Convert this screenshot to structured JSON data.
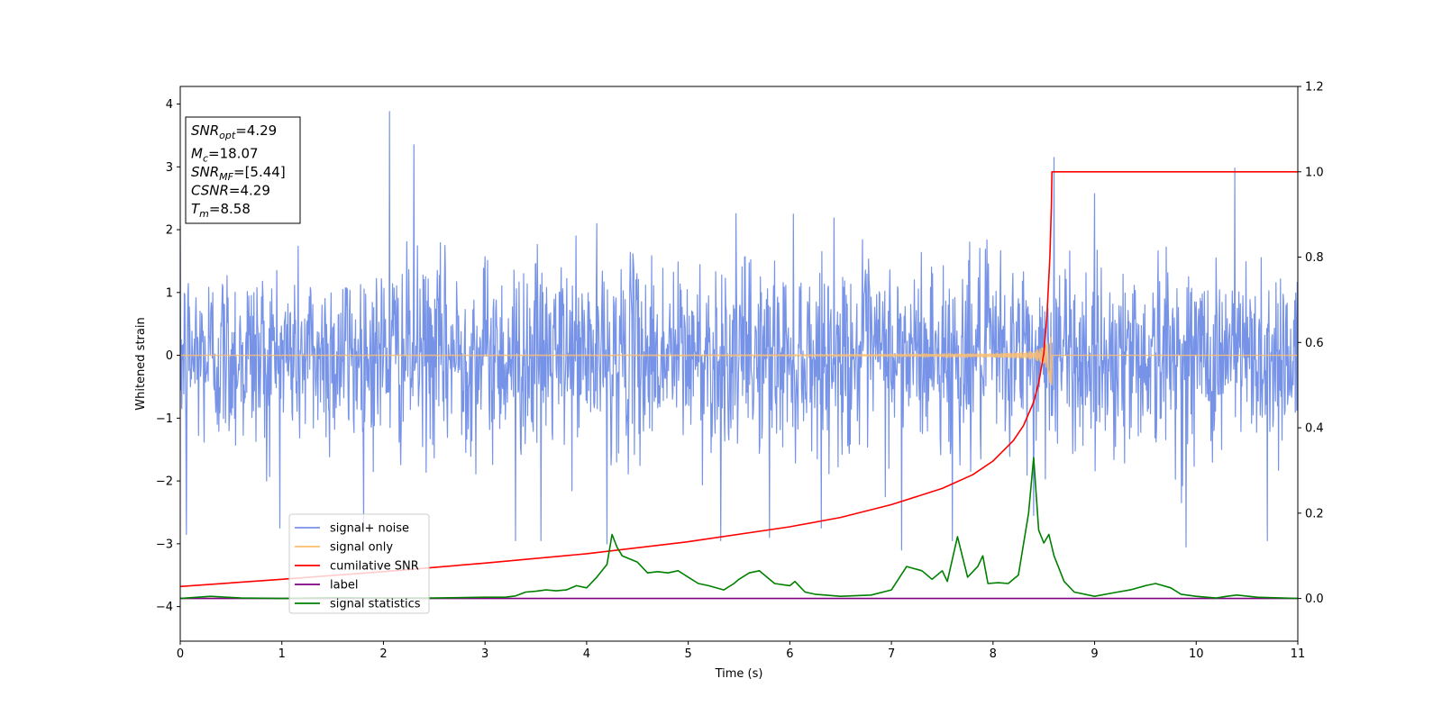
{
  "chart_data": {
    "type": "line",
    "xlabel": "Time (s)",
    "ylabel": "Whitened strain",
    "xlim": [
      0,
      11
    ],
    "ylim_left": [
      -4.55,
      4.28
    ],
    "ylim_right": [
      -0.1,
      1.2
    ],
    "x_ticks": [
      "0",
      "1",
      "2",
      "3",
      "4",
      "5",
      "6",
      "7",
      "8",
      "9",
      "10",
      "11"
    ],
    "y_ticks_left": [
      {
        "value": 4,
        "label": "4"
      },
      {
        "value": 3,
        "label": "3"
      },
      {
        "value": 2,
        "label": "2"
      },
      {
        "value": 1,
        "label": "1"
      },
      {
        "value": 0,
        "label": "0"
      },
      {
        "value": -1,
        "label": "−1"
      },
      {
        "value": -2,
        "label": "−2"
      },
      {
        "value": -3,
        "label": "−3"
      },
      {
        "value": -4,
        "label": "−4"
      }
    ],
    "y_ticks_right": [
      {
        "value": 1.2,
        "label": "1.2"
      },
      {
        "value": 1.0,
        "label": "1.0"
      },
      {
        "value": 0.8,
        "label": "0.8"
      },
      {
        "value": 0.6,
        "label": "0.6"
      },
      {
        "value": 0.4,
        "label": "0.4"
      },
      {
        "value": 0.2,
        "label": "0.2"
      },
      {
        "value": 0.0,
        "label": "0.0"
      }
    ],
    "grid": false,
    "legend_position": "lower-left",
    "annotation": {
      "lines": [
        {
          "main": "SNR",
          "sub": "opt",
          "rest": "=4.29"
        },
        {
          "main": "M",
          "sub": "c",
          "rest": "=18.07"
        },
        {
          "main": "SNR",
          "sub": "MF",
          "rest": "=[5.44]"
        },
        {
          "main": "CSNR",
          "sub": "",
          "rest": "=4.29"
        },
        {
          "main": "T",
          "sub": "m",
          "rest": "=8.58"
        }
      ]
    },
    "series": [
      {
        "name": "signal+ noise",
        "color": "#7793e8",
        "axis": "left",
        "kind": "noise",
        "sigma": 0.75,
        "spikes": [
          {
            "x": 2.06,
            "y": 3.88
          },
          {
            "x": 2.3,
            "y": 3.35
          },
          {
            "x": 8.6,
            "y": 3.15
          },
          {
            "x": 10.38,
            "y": 2.98
          },
          {
            "x": 4.2,
            "y": -3.0
          },
          {
            "x": 0.06,
            "y": -2.85
          },
          {
            "x": 3.3,
            "y": -2.95
          },
          {
            "x": 3.55,
            "y": -2.95
          },
          {
            "x": 5.32,
            "y": -2.95
          },
          {
            "x": 5.8,
            "y": -2.9
          },
          {
            "x": 7.1,
            "y": -3.1
          },
          {
            "x": 7.6,
            "y": -2.95
          },
          {
            "x": 9.9,
            "y": -3.05
          },
          {
            "x": 10.7,
            "y": -2.95
          },
          {
            "x": 8.4,
            "y": -2.55
          },
          {
            "x": 0.85,
            "y": -2.0
          }
        ]
      },
      {
        "name": "signal only",
        "color": "#fdbf6f",
        "axis": "left",
        "kind": "chirp",
        "merger_time": 8.58,
        "peak_amplitude": 0.72
      },
      {
        "name": "cumilative SNR",
        "color": "#ff0000",
        "axis": "right",
        "points": [
          [
            0,
            0.028
          ],
          [
            1,
            0.045
          ],
          [
            2,
            0.063
          ],
          [
            3,
            0.083
          ],
          [
            4,
            0.105
          ],
          [
            5,
            0.133
          ],
          [
            6,
            0.168
          ],
          [
            6.5,
            0.19
          ],
          [
            7,
            0.22
          ],
          [
            7.5,
            0.258
          ],
          [
            7.8,
            0.29
          ],
          [
            8.0,
            0.322
          ],
          [
            8.2,
            0.37
          ],
          [
            8.3,
            0.405
          ],
          [
            8.4,
            0.46
          ],
          [
            8.45,
            0.505
          ],
          [
            8.5,
            0.575
          ],
          [
            8.53,
            0.66
          ],
          [
            8.56,
            0.8
          ],
          [
            8.575,
            0.92
          ],
          [
            8.58,
            1.0
          ],
          [
            11,
            1.0
          ]
        ]
      },
      {
        "name": "label",
        "color": "#800080",
        "axis": "right",
        "points": [
          [
            0,
            0.0
          ],
          [
            11,
            0.0
          ]
        ]
      },
      {
        "name": "signal statistics",
        "color": "#008000",
        "axis": "right",
        "points": [
          [
            0,
            0.0
          ],
          [
            0.3,
            0.005
          ],
          [
            0.6,
            0.001
          ],
          [
            1.0,
            0.0
          ],
          [
            1.5,
            0.002
          ],
          [
            2.0,
            0.001
          ],
          [
            2.5,
            0.001
          ],
          [
            3.0,
            0.003
          ],
          [
            3.2,
            0.003
          ],
          [
            3.3,
            0.006
          ],
          [
            3.4,
            0.015
          ],
          [
            3.5,
            0.017
          ],
          [
            3.6,
            0.02
          ],
          [
            3.7,
            0.018
          ],
          [
            3.8,
            0.02
          ],
          [
            3.9,
            0.03
          ],
          [
            4.0,
            0.025
          ],
          [
            4.1,
            0.05
          ],
          [
            4.2,
            0.08
          ],
          [
            4.25,
            0.15
          ],
          [
            4.3,
            0.12
          ],
          [
            4.35,
            0.1
          ],
          [
            4.5,
            0.085
          ],
          [
            4.6,
            0.06
          ],
          [
            4.7,
            0.063
          ],
          [
            4.8,
            0.06
          ],
          [
            4.9,
            0.065
          ],
          [
            5.0,
            0.05
          ],
          [
            5.1,
            0.035
          ],
          [
            5.2,
            0.03
          ],
          [
            5.35,
            0.02
          ],
          [
            5.45,
            0.035
          ],
          [
            5.5,
            0.045
          ],
          [
            5.6,
            0.06
          ],
          [
            5.7,
            0.065
          ],
          [
            5.85,
            0.035
          ],
          [
            6.0,
            0.03
          ],
          [
            6.05,
            0.04
          ],
          [
            6.15,
            0.015
          ],
          [
            6.25,
            0.01
          ],
          [
            6.5,
            0.005
          ],
          [
            6.8,
            0.008
          ],
          [
            7.0,
            0.02
          ],
          [
            7.15,
            0.075
          ],
          [
            7.3,
            0.065
          ],
          [
            7.4,
            0.045
          ],
          [
            7.5,
            0.065
          ],
          [
            7.55,
            0.04
          ],
          [
            7.65,
            0.145
          ],
          [
            7.75,
            0.05
          ],
          [
            7.85,
            0.075
          ],
          [
            7.9,
            0.1
          ],
          [
            7.95,
            0.035
          ],
          [
            8.05,
            0.037
          ],
          [
            8.15,
            0.035
          ],
          [
            8.25,
            0.055
          ],
          [
            8.35,
            0.2
          ],
          [
            8.4,
            0.33
          ],
          [
            8.45,
            0.16
          ],
          [
            8.5,
            0.13
          ],
          [
            8.55,
            0.15
          ],
          [
            8.6,
            0.1
          ],
          [
            8.7,
            0.04
          ],
          [
            8.8,
            0.015
          ],
          [
            9.0,
            0.005
          ],
          [
            9.2,
            0.014
          ],
          [
            9.35,
            0.02
          ],
          [
            9.5,
            0.03
          ],
          [
            9.6,
            0.035
          ],
          [
            9.75,
            0.025
          ],
          [
            9.85,
            0.01
          ],
          [
            10.0,
            0.005
          ],
          [
            10.1,
            0.003
          ],
          [
            10.2,
            0.001
          ],
          [
            10.3,
            0.005
          ],
          [
            10.4,
            0.008
          ],
          [
            10.6,
            0.003
          ],
          [
            11,
            0.0
          ]
        ]
      }
    ]
  }
}
